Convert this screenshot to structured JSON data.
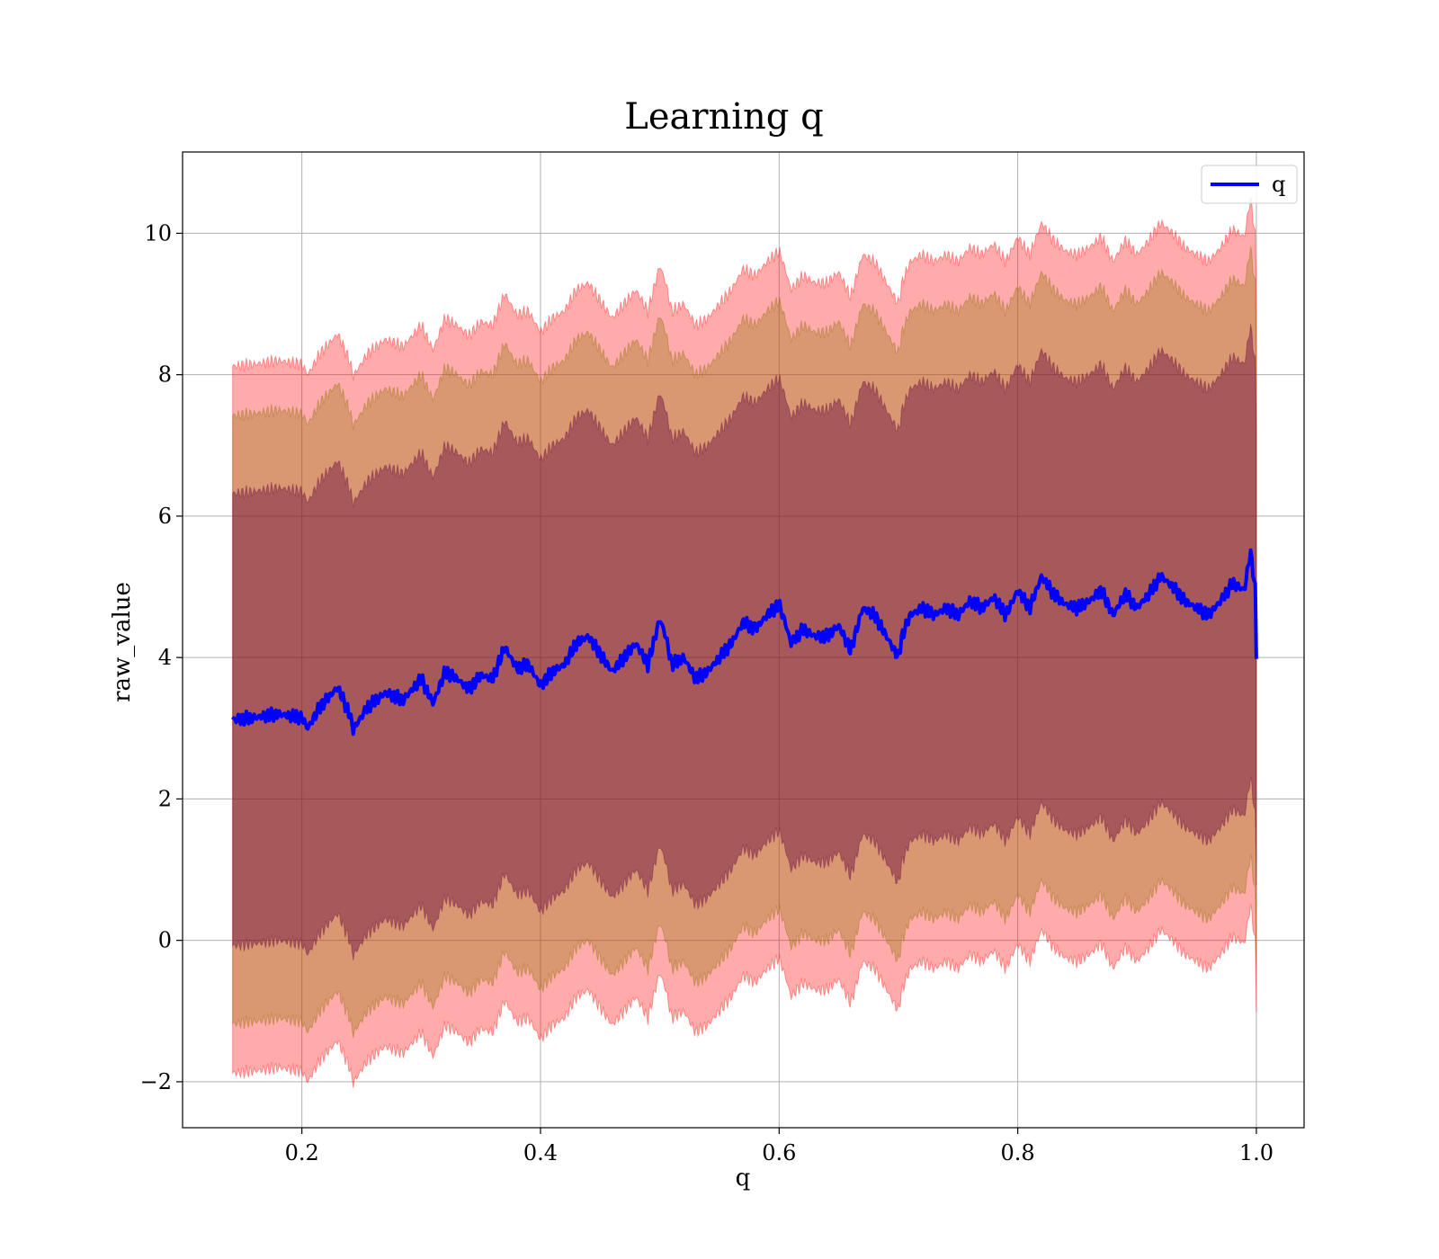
{
  "chart_data": {
    "type": "line",
    "title": "Learning q",
    "xlabel": "q",
    "ylabel": "raw_value",
    "xlim": [
      0.1,
      1.04
    ],
    "ylim": [
      -2.65,
      11.15
    ],
    "xticks": [
      0.2,
      0.4,
      0.6,
      0.8,
      1.0
    ],
    "xtick_labels": [
      "0.2",
      "0.4",
      "0.6",
      "0.8",
      "1.0"
    ],
    "yticks": [
      -2,
      0,
      2,
      4,
      6,
      8,
      10
    ],
    "ytick_labels": [
      "−2",
      "0",
      "2",
      "4",
      "6",
      "8",
      "10"
    ],
    "grid": true,
    "legend": {
      "position": "top-right",
      "entries": [
        {
          "label": "q",
          "color": "#0000ff"
        }
      ]
    },
    "series": [
      {
        "name": "q",
        "color": "#0000ff",
        "x": [
          0.142,
          0.16,
          0.18,
          0.2,
          0.205,
          0.215,
          0.23,
          0.24,
          0.243,
          0.255,
          0.27,
          0.285,
          0.3,
          0.31,
          0.32,
          0.33,
          0.34,
          0.35,
          0.36,
          0.37,
          0.38,
          0.39,
          0.4,
          0.41,
          0.42,
          0.43,
          0.44,
          0.45,
          0.46,
          0.47,
          0.48,
          0.49,
          0.5,
          0.505,
          0.51,
          0.52,
          0.53,
          0.54,
          0.55,
          0.56,
          0.57,
          0.58,
          0.59,
          0.6,
          0.605,
          0.61,
          0.62,
          0.63,
          0.64,
          0.65,
          0.66,
          0.67,
          0.68,
          0.69,
          0.7,
          0.703,
          0.71,
          0.72,
          0.73,
          0.74,
          0.75,
          0.76,
          0.77,
          0.78,
          0.79,
          0.8,
          0.81,
          0.82,
          0.83,
          0.84,
          0.85,
          0.86,
          0.87,
          0.88,
          0.89,
          0.9,
          0.91,
          0.92,
          0.93,
          0.94,
          0.95,
          0.96,
          0.97,
          0.98,
          0.99,
          0.995,
          0.999,
          1.0
        ],
        "y": [
          3.12,
          3.15,
          3.2,
          3.15,
          3.0,
          3.3,
          3.58,
          3.2,
          2.98,
          3.3,
          3.5,
          3.4,
          3.7,
          3.35,
          3.8,
          3.7,
          3.55,
          3.75,
          3.7,
          4.15,
          3.85,
          3.9,
          3.6,
          3.8,
          3.9,
          4.2,
          4.3,
          4.05,
          3.8,
          4.0,
          4.2,
          3.9,
          4.55,
          4.3,
          3.9,
          4.0,
          3.7,
          3.8,
          4.0,
          4.2,
          4.5,
          4.4,
          4.6,
          4.75,
          4.5,
          4.2,
          4.4,
          4.3,
          4.3,
          4.45,
          4.1,
          4.7,
          4.6,
          4.3,
          4.0,
          4.3,
          4.6,
          4.7,
          4.6,
          4.7,
          4.6,
          4.8,
          4.7,
          4.85,
          4.6,
          4.95,
          4.7,
          5.15,
          4.9,
          4.75,
          4.7,
          4.8,
          4.95,
          4.6,
          4.9,
          4.7,
          4.9,
          5.15,
          5.0,
          4.8,
          4.7,
          4.6,
          4.8,
          5.05,
          4.95,
          5.5,
          5.0,
          4.0
        ]
      }
    ],
    "bands": [
      {
        "color": "#ff0000",
        "opacity": 0.33,
        "lower_offset": -5.0,
        "upper_offset": 5.0,
        "edge_noise": [
          0.1,
          0.05,
          0.05,
          0.1,
          0.1,
          0.05
        ]
      },
      {
        "color": "#8b7000",
        "opacity": 0.33,
        "lower_offset": -4.3,
        "upper_offset": 4.3
      },
      {
        "color": "#6b0a3f",
        "opacity": 0.45,
        "lower_offset": -3.2,
        "upper_offset": 3.2
      }
    ]
  }
}
